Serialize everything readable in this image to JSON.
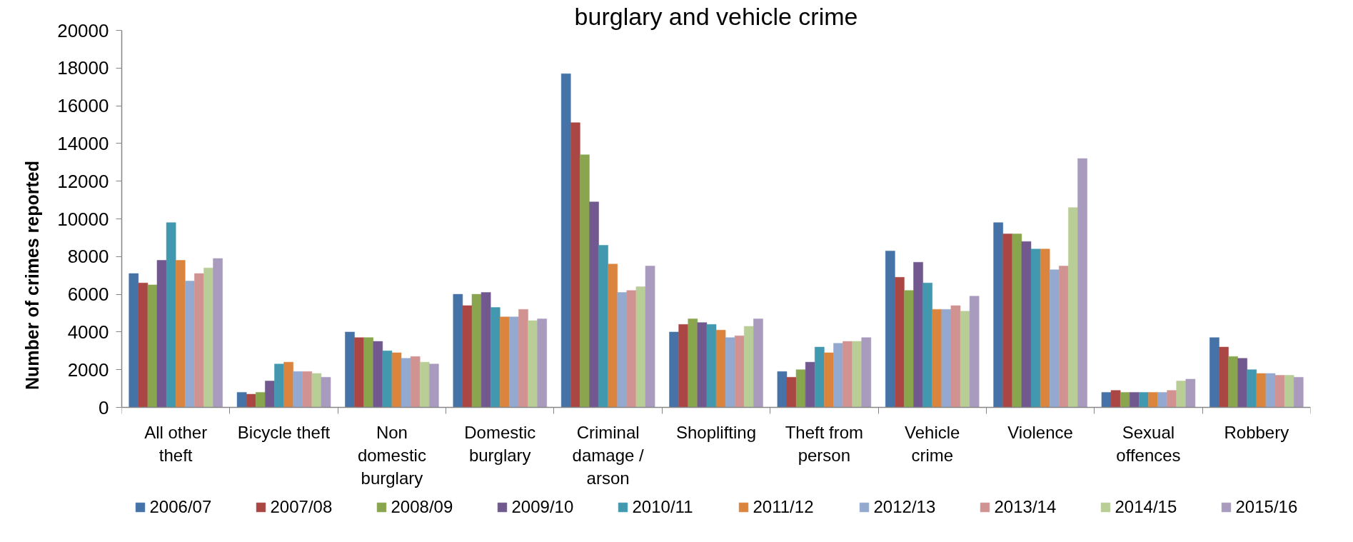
{
  "chart_data": {
    "type": "bar",
    "title": "burglary and vehicle crime",
    "ylabel": "Number of crimes reported",
    "categories": [
      "All other theft",
      "Bicycle theft",
      "Non domestic burglary",
      "Domestic burglary",
      "Criminal damage / arson",
      "Shoplifting",
      "Theft from person",
      "Vehicle crime",
      "Violence",
      "Sexual offences",
      "Robbery"
    ],
    "series": [
      {
        "name": "2006/07",
        "color": "#4572a7",
        "values": [
          7100,
          800,
          4000,
          6000,
          17700,
          4000,
          1900,
          8300,
          9800,
          800,
          3700
        ]
      },
      {
        "name": "2007/08",
        "color": "#aa4643",
        "values": [
          6600,
          700,
          3700,
          5400,
          15100,
          4400,
          1600,
          6900,
          9200,
          900,
          3200
        ]
      },
      {
        "name": "2008/09",
        "color": "#89a54e",
        "values": [
          6500,
          800,
          3700,
          6000,
          13400,
          4700,
          2000,
          6200,
          9200,
          800,
          2700
        ]
      },
      {
        "name": "2009/10",
        "color": "#71588f",
        "values": [
          7800,
          1400,
          3500,
          6100,
          10900,
          4500,
          2400,
          7700,
          8800,
          800,
          2600
        ]
      },
      {
        "name": "2010/11",
        "color": "#4198af",
        "values": [
          9800,
          2300,
          3000,
          5300,
          8600,
          4400,
          3200,
          6600,
          8400,
          800,
          2000
        ]
      },
      {
        "name": "2011/12",
        "color": "#db843d",
        "values": [
          7800,
          2400,
          2900,
          4800,
          7600,
          4100,
          2900,
          5200,
          8400,
          800,
          1800
        ]
      },
      {
        "name": "2012/13",
        "color": "#93a9cf",
        "values": [
          6700,
          1900,
          2600,
          4800,
          6100,
          3700,
          3400,
          5200,
          7300,
          800,
          1800
        ]
      },
      {
        "name": "2013/14",
        "color": "#d19392",
        "values": [
          7100,
          1900,
          2700,
          5200,
          6200,
          3800,
          3500,
          5400,
          7500,
          900,
          1700
        ]
      },
      {
        "name": "2014/15",
        "color": "#b9cd96",
        "values": [
          7400,
          1800,
          2400,
          4600,
          6400,
          4300,
          3500,
          5100,
          10600,
          1400,
          1700
        ]
      },
      {
        "name": "2015/16",
        "color": "#a99bbd",
        "values": [
          7900,
          1600,
          2300,
          4700,
          7500,
          4700,
          3700,
          5900,
          13200,
          1500,
          1600
        ]
      }
    ],
    "ylim": [
      0,
      20000
    ],
    "yticks": [
      0,
      2000,
      4000,
      6000,
      8000,
      10000,
      12000,
      14000,
      16000,
      18000,
      20000
    ],
    "grid": false,
    "legend": "bottom"
  }
}
